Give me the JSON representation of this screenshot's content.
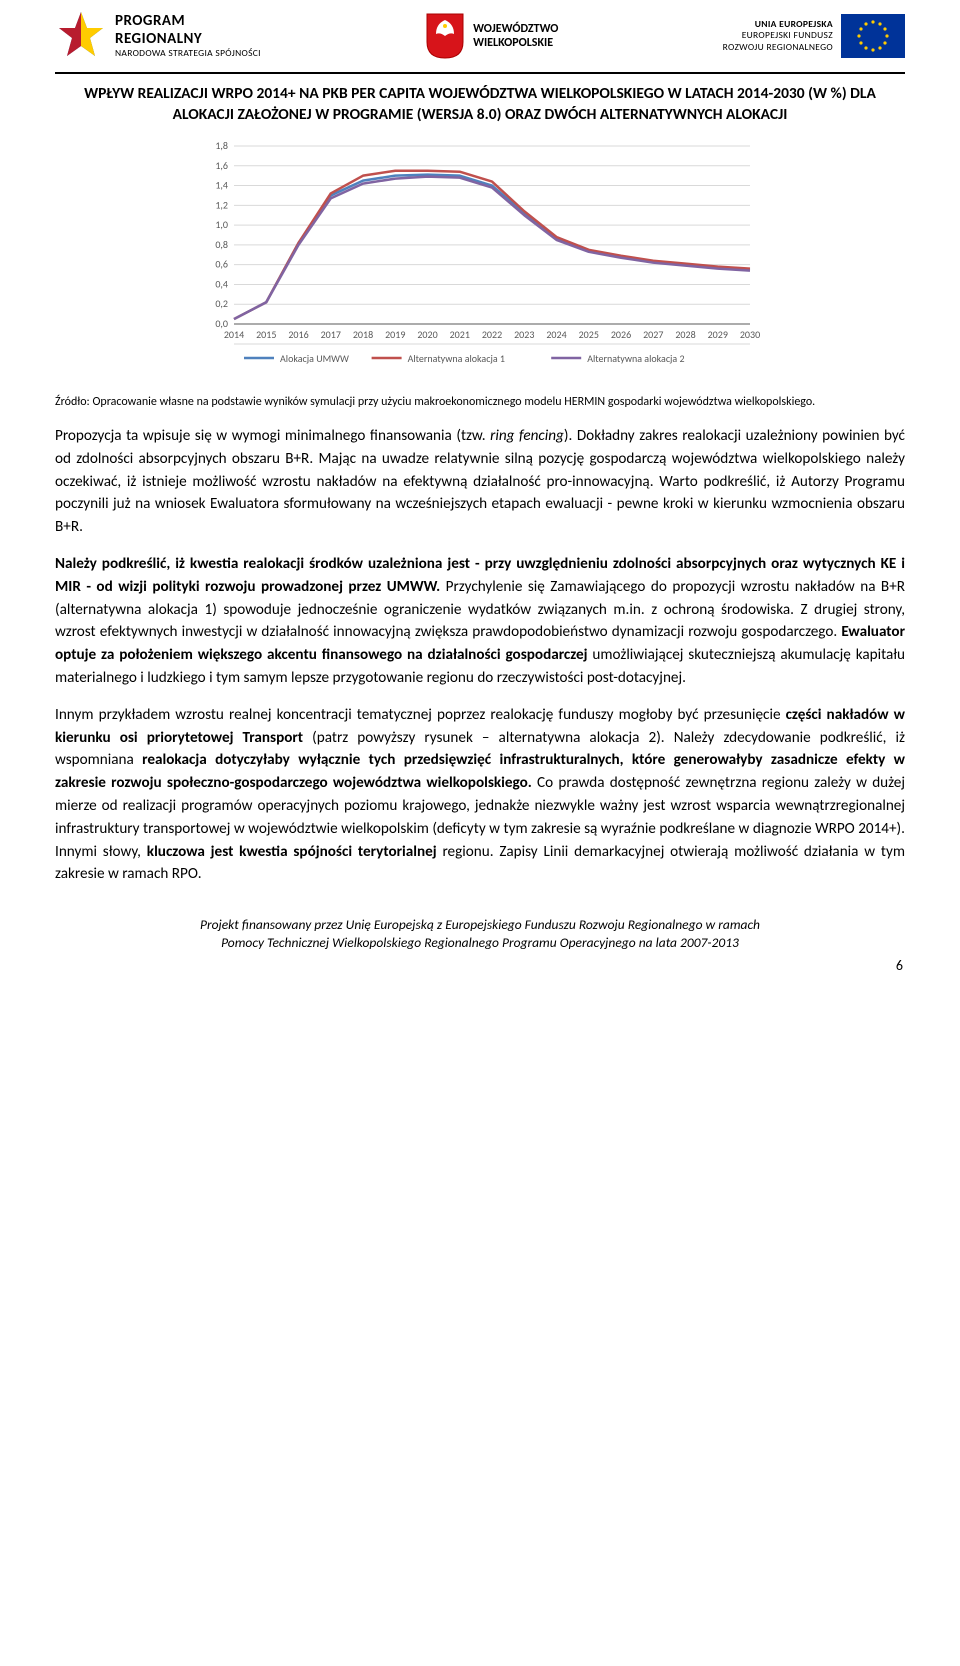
{
  "header": {
    "left": {
      "line1": "PROGRAM",
      "line2": "REGIONALNY",
      "line3": "NARODOWA STRATEGIA SPÓJNOŚCI"
    },
    "center": {
      "line1": "WOJEWÓDZTWO",
      "line2": "WIELKOPOLSKIE"
    },
    "right": {
      "line1": "UNIA EUROPEJSKA",
      "line2": "EUROPEJSKI FUNDUSZ",
      "line3": "ROZWOJU REGIONALNEGO"
    }
  },
  "title": "WPŁYW REALIZACJI WRPO 2014+ NA PKB PER CAPITA WOJEWÓDZTWA WIELKOPOLSKIEGO W LATACH 2014-2030 (W %) DLA ALOKACJI ZAŁOŻONEJ W PROGRAMIE (WERSJA 8.0) ORAZ DWÓCH ALTERNATYWNYCH ALOKACJI",
  "chart": {
    "type": "line",
    "background_color": "#ffffff",
    "grid_color": "#d9d9d9",
    "axis_color": "#595959",
    "tick_font_size": 10,
    "tick_color": "#595959",
    "ylim": [
      0.0,
      1.8
    ],
    "ytick_step": 0.2,
    "yticks": [
      "0,0",
      "0,2",
      "0,4",
      "0,6",
      "0,8",
      "1,0",
      "1,2",
      "1,4",
      "1,6",
      "1,8"
    ],
    "xticks": [
      "2014",
      "2015",
      "2016",
      "2017",
      "2018",
      "2019",
      "2020",
      "2021",
      "2022",
      "2023",
      "2024",
      "2025",
      "2026",
      "2027",
      "2028",
      "2029",
      "2030"
    ],
    "line_width": 2.5,
    "series": [
      {
        "name": "Alokacja UMWW",
        "color": "#4f81bd",
        "values": [
          0.05,
          0.22,
          0.82,
          1.3,
          1.45,
          1.5,
          1.51,
          1.5,
          1.4,
          1.12,
          0.86,
          0.74,
          0.68,
          0.63,
          0.6,
          0.57,
          0.55
        ]
      },
      {
        "name": "Alternatywna alokacja 1",
        "color": "#c0504d",
        "values": [
          0.05,
          0.22,
          0.82,
          1.32,
          1.5,
          1.55,
          1.55,
          1.54,
          1.44,
          1.14,
          0.88,
          0.75,
          0.69,
          0.64,
          0.61,
          0.58,
          0.56
        ]
      },
      {
        "name": "Alternatywna alokacja 2",
        "color": "#8064a2",
        "values": [
          0.05,
          0.22,
          0.8,
          1.27,
          1.42,
          1.47,
          1.49,
          1.48,
          1.38,
          1.1,
          0.85,
          0.73,
          0.67,
          0.62,
          0.59,
          0.56,
          0.54
        ]
      }
    ],
    "legend_font_size": 10
  },
  "source": "Źródło: Opracowanie własne na podstawie wyników symulacji przy użyciu makroekonomicznego modelu HERMIN gospodarki województwa wielkopolskiego.",
  "para1_a": "Propozycja ta wpisuje się w wymogi minimalnego finansowania (tzw. ",
  "para1_b": "ring fencing",
  "para1_c": "). Dokładny zakres realokacji uzależniony powinien być od zdolności absorpcyjnych obszaru B+R. Mając na uwadze relatywnie silną pozycję gospodarczą województwa wielkopolskiego należy oczekiwać, iż istnieje możliwość wzrostu nakładów na efektywną działalność pro-innowacyjną. Warto podkreślić, iż Autorzy Programu poczynili już na wniosek Ewaluatora sformułowany na wcześniejszych etapach ewaluacji - pewne kroki w kierunku wzmocnienia obszaru B+R.",
  "para2_a": "Należy podkreślić, iż kwestia realokacji środków uzależniona jest - przy uwzględnieniu zdolności absorpcyjnych oraz wytycznych KE i MIR - od wizji polityki rozwoju prowadzonej przez UMWW.",
  "para2_b": " Przychylenie się Zamawiającego do propozycji wzrostu nakładów na B+R (alternatywna alokacja 1) spowoduje jednocześnie ograniczenie wydatków związanych m.in. z ochroną środowiska. Z drugiej strony, wzrost efektywnych inwestycji w działalność innowacyjną zwiększa prawdopodobieństwo dynamizacji rozwoju gospodarczego. ",
  "para2_c": "Ewaluator optuje za położeniem większego akcentu finansowego na działalności gospodarczej",
  "para2_d": " umożliwiającej skuteczniejszą akumulację kapitału materialnego i ludzkiego i tym samym lepsze przygotowanie regionu do rzeczywistości post-dotacyjnej.",
  "para3_a": "Innym przykładem wzrostu realnej koncentracji tematycznej poprzez realokację funduszy mogłoby być przesunięcie ",
  "para3_b": "części nakładów w kierunku osi priorytetowej Transport",
  "para3_c": " (patrz powyższy rysunek – alternatywna alokacja 2). Należy zdecydowanie podkreślić, iż wspomniana ",
  "para3_d": "realokacja dotyczyłaby wyłącznie tych przedsięwzięć infrastrukturalnych, które generowałyby zasadnicze efekty w zakresie rozwoju społeczno-gospodarczego województwa wielkopolskiego.",
  "para3_e": " Co prawda dostępność zewnętrzna regionu zależy w dużej mierze od realizacji programów operacyjnych poziomu krajowego, jednakże niezwykle ważny jest wzrost wsparcia wewnątrzregionalnej infrastruktury transportowej w województwie wielkopolskim (deficyty w tym zakresie są wyraźnie podkreślane w diagnozie WRPO 2014+). Innymi słowy, ",
  "para3_f": "kluczowa jest kwestia spójności terytorialnej",
  "para3_g": " regionu. Zapisy Linii demarkacyjnej otwierają możliwość działania w tym zakresie w ramach RPO.",
  "footer_l1": "Projekt finansowany przez Unię Europejską z Europejskiego Funduszu Rozwoju Regionalnego w ramach",
  "footer_l2": "Pomocy Technicznej Wielkopolskiego Regionalnego Programu Operacyjnego na lata 2007-2013",
  "pagenum": "6"
}
